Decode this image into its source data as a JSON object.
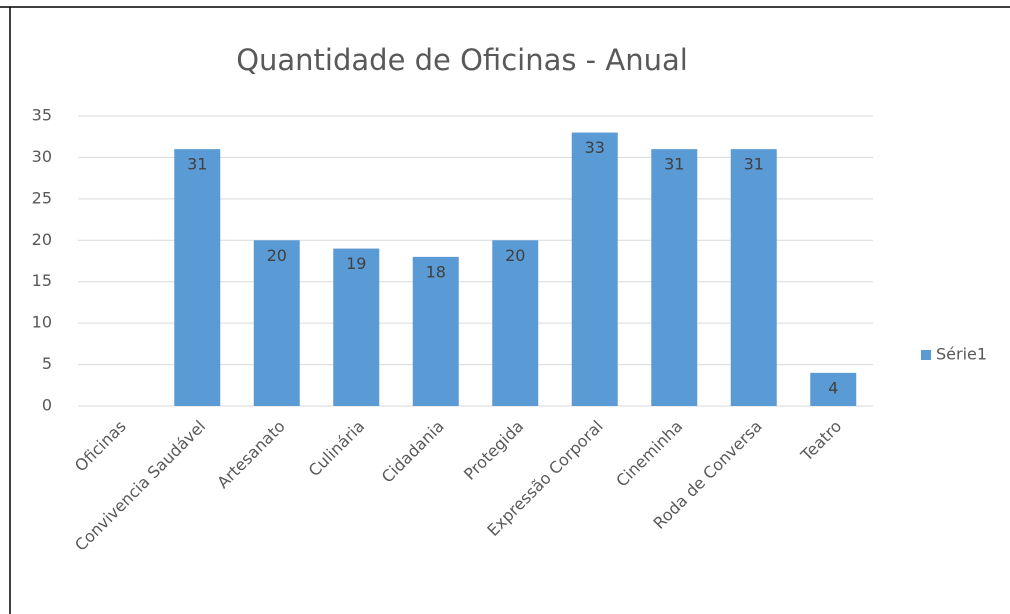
{
  "chart_data": {
    "type": "bar",
    "title": "Quantidade de Oficinas - Anual",
    "categories": [
      "Oficinas",
      "Convivencia Saudável",
      "Artesanato",
      "Culinária",
      "Cidadania",
      "Protegida",
      "Expressão Corporal",
      "Cineminha",
      "Roda de Conversa",
      "Teatro"
    ],
    "series": [
      {
        "name": "Série1",
        "color": "#5b9bd5",
        "values": [
          null,
          31,
          20,
          19,
          18,
          20,
          33,
          31,
          31,
          4
        ]
      }
    ],
    "ylim": [
      0,
      35
    ],
    "yticks": [
      0,
      5,
      10,
      15,
      20,
      25,
      30,
      35
    ],
    "grid": true,
    "legend": "right"
  }
}
